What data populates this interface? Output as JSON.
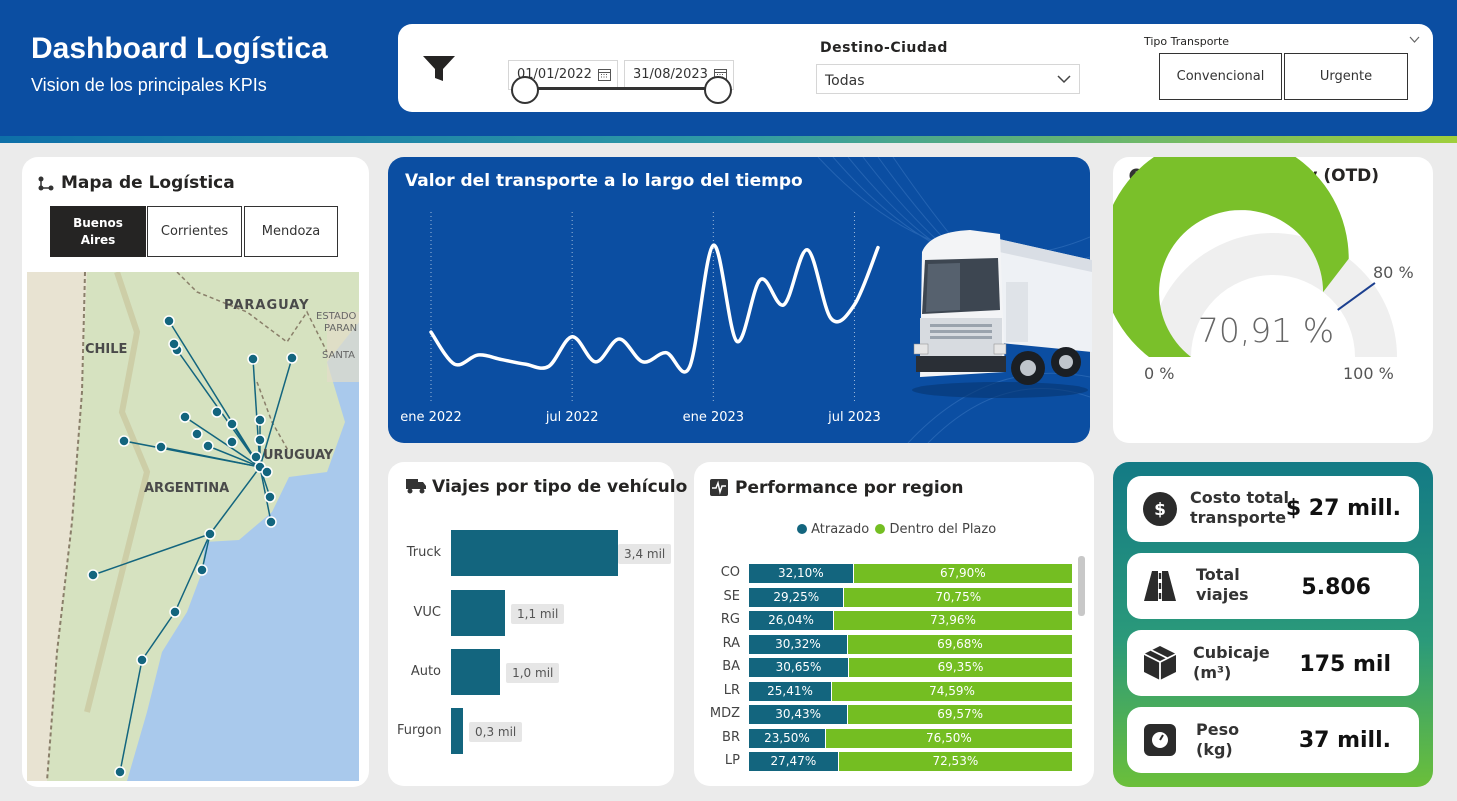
{
  "header": {
    "title": "Dashboard Logística",
    "subtitle": "Vision de los principales KPIs"
  },
  "filters": {
    "date_from": "01/01/2022",
    "date_to": "31/08/2023",
    "destino_label": "Destino-Ciudad",
    "destino_value": "Todas",
    "tipo_label": "Tipo Transporte",
    "tipo_options": [
      "Convencional",
      "Urgente"
    ]
  },
  "map_card": {
    "title": "Mapa de Logística",
    "buttons": [
      "Buenos Aires",
      "Corrientes",
      "Mendoza"
    ],
    "labels": {
      "paraguay": "PARAGUAY",
      "estado": "ESTADO",
      "parana": "PARAN",
      "santa": "SANTA",
      "chile": "CHILE",
      "uruguay": "URUGUAY",
      "argentina": "ARGENTINA"
    }
  },
  "transport_card": {
    "title": "Valor del transporte a lo largo del tiempo",
    "x_labels": [
      "ene 2022",
      "jul 2022",
      "ene 2023",
      "jul 2023"
    ]
  },
  "otd_card": {
    "title": "On Time Delivery (OTD)",
    "value": 70.91,
    "value_label": "70,91 %",
    "target": 80,
    "target_label": "80 %",
    "min_label": "0 %",
    "max_label": "100 %"
  },
  "vehicles_card": {
    "title": "Viajes por tipo de vehículo",
    "items": [
      {
        "label": "Truck",
        "value": 3.4,
        "value_label": "3,4 mil"
      },
      {
        "label": "VUC",
        "value": 1.1,
        "value_label": "1,1 mil"
      },
      {
        "label": "Auto",
        "value": 1.0,
        "value_label": "1,0 mil"
      },
      {
        "label": "Furgon",
        "value": 0.3,
        "value_label": "0,3 mil"
      }
    ]
  },
  "region_card": {
    "title": "Performance por region",
    "legend": [
      "Atrazado",
      "Dentro del Plazo"
    ],
    "rows": [
      {
        "label": "CO",
        "a": 32.1,
        "a_label": "32,10%",
        "b_label": "67,90%"
      },
      {
        "label": "SE",
        "a": 29.25,
        "a_label": "29,25%",
        "b_label": "70,75%"
      },
      {
        "label": "RG",
        "a": 26.04,
        "a_label": "26,04%",
        "b_label": "73,96%"
      },
      {
        "label": "RA",
        "a": 30.32,
        "a_label": "30,32%",
        "b_label": "69,68%"
      },
      {
        "label": "BA",
        "a": 30.65,
        "a_label": "30,65%",
        "b_label": "69,35%"
      },
      {
        "label": "LR",
        "a": 25.41,
        "a_label": "25,41%",
        "b_label": "74,59%"
      },
      {
        "label": "MDZ",
        "a": 30.43,
        "a_label": "30,43%",
        "b_label": "69,57%"
      },
      {
        "label": "BR",
        "a": 23.5,
        "a_label": "23,50%",
        "b_label": "76,50%"
      },
      {
        "label": "LP",
        "a": 27.47,
        "a_label": "27,47%",
        "b_label": "72,53%"
      }
    ]
  },
  "kpis": [
    {
      "label_1": "Costo total",
      "label_2": "transporte",
      "value": "$ 27 mill.",
      "icon": "dollar-icon"
    },
    {
      "label_1": "Total",
      "label_2": "viajes",
      "value": "5.806",
      "icon": "road-icon"
    },
    {
      "label_1": "Cubicaje",
      "label_2": "(m³)",
      "value": "175 mil",
      "icon": "box-icon"
    },
    {
      "label_1": "Peso",
      "label_2": "(kg)",
      "value": "37 mill.",
      "icon": "weight-icon"
    }
  ],
  "chart_data": [
    {
      "type": "line",
      "title": "Valor del transporte a lo largo del tiempo",
      "x": [
        "2022-01",
        "2022-02",
        "2022-03",
        "2022-04",
        "2022-05",
        "2022-06",
        "2022-07",
        "2022-08",
        "2022-09",
        "2022-10",
        "2022-11",
        "2022-12",
        "2023-01",
        "2023-02",
        "2023-03",
        "2023-04",
        "2023-05",
        "2023-06",
        "2023-07",
        "2023-08"
      ],
      "values": [
        1.2,
        0.5,
        0.7,
        0.6,
        0.5,
        0.45,
        1.1,
        0.55,
        1.05,
        0.55,
        0.75,
        0.45,
        3.1,
        1.0,
        2.35,
        1.8,
        3.0,
        1.5,
        1.8,
        3.05
      ],
      "xlabel": "",
      "ylabel": "",
      "ylim": [
        0,
        3.5
      ],
      "grid": false
    },
    {
      "type": "bar",
      "title": "Viajes por tipo de vehículo",
      "categories": [
        "Truck",
        "VUC",
        "Auto",
        "Furgon"
      ],
      "values": [
        3.4,
        1.1,
        1.0,
        0.3
      ],
      "orientation": "horizontal"
    },
    {
      "type": "bar",
      "title": "Performance por region",
      "categories": [
        "CO",
        "SE",
        "RG",
        "RA",
        "BA",
        "LR",
        "MDZ",
        "BR",
        "LP"
      ],
      "series": [
        {
          "name": "Atrazado",
          "values": [
            32.1,
            29.25,
            26.04,
            30.32,
            30.65,
            25.41,
            30.43,
            23.5,
            27.47
          ]
        },
        {
          "name": "Dentro del Plazo",
          "values": [
            67.9,
            70.75,
            73.96,
            69.68,
            69.35,
            74.59,
            69.57,
            76.5,
            72.53
          ]
        }
      ],
      "stacked": "100%",
      "orientation": "horizontal",
      "legend": "top"
    }
  ],
  "colors": {
    "header": "#0b4ea2",
    "teal": "#13657e",
    "green": "#74be22",
    "gauge_green": "#7ac02a"
  }
}
